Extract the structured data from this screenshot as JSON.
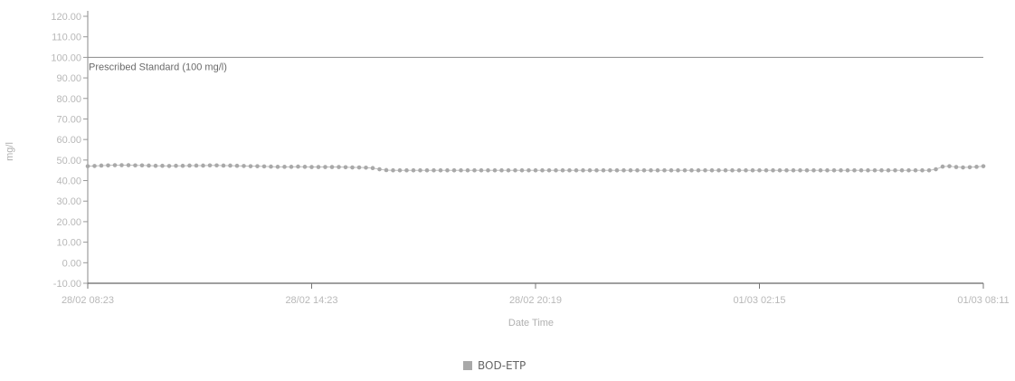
{
  "chart_data": {
    "type": "line",
    "xlabel": "Date Time",
    "ylabel": "mg/l",
    "ylim": [
      -10,
      120
    ],
    "y_ticks": [
      "-10.00",
      "0.00",
      "10.00",
      "20.00",
      "30.00",
      "40.00",
      "50.00",
      "60.00",
      "70.00",
      "80.00",
      "90.00",
      "100.00",
      "110.00",
      "120.00"
    ],
    "x_tick_labels": [
      "28/02 08:23",
      "28/02 14:23",
      "28/02 20:19",
      "01/03 02:15",
      "01/03 08:11"
    ],
    "grid": false,
    "legend_position": "bottom-center",
    "reference_line": {
      "value": 100,
      "label": "Prescribed Standard (100 mg/l)",
      "color": "#8a8a8a"
    },
    "series": [
      {
        "name": "BOD-ETP",
        "color": "#a9a9a9",
        "values": [
          47.0,
          47.1,
          47.3,
          47.4,
          47.5,
          47.5,
          47.5,
          47.4,
          47.4,
          47.3,
          47.2,
          47.2,
          47.1,
          47.2,
          47.2,
          47.3,
          47.3,
          47.3,
          47.4,
          47.4,
          47.3,
          47.3,
          47.2,
          47.1,
          47.0,
          47.0,
          46.9,
          46.8,
          46.7,
          46.7,
          46.7,
          46.8,
          46.7,
          46.6,
          46.6,
          46.6,
          46.6,
          46.6,
          46.5,
          46.4,
          46.4,
          46.3,
          46.1,
          45.5,
          45.1,
          45.0,
          45.0,
          45.0,
          45.0,
          45.0,
          45.0,
          45.0,
          45.0,
          45.0,
          45.0,
          45.0,
          45.0,
          45.0,
          45.0,
          45.0,
          45.0,
          45.0,
          45.0,
          45.0,
          45.0,
          45.0,
          45.0,
          45.0,
          45.0,
          45.0,
          45.0,
          45.0,
          45.0,
          45.0,
          45.0,
          45.0,
          45.0,
          45.0,
          45.0,
          45.0,
          45.0,
          45.0,
          45.0,
          45.0,
          45.0,
          45.0,
          45.0,
          45.0,
          45.0,
          45.0,
          45.0,
          45.0,
          45.0,
          45.0,
          45.0,
          45.0,
          45.0,
          45.0,
          45.0,
          45.0,
          45.0,
          45.0,
          45.0,
          45.0,
          45.0,
          45.0,
          45.0,
          45.0,
          45.0,
          45.0,
          45.0,
          45.0,
          45.0,
          45.0,
          45.0,
          45.0,
          45.0,
          45.0,
          45.0,
          45.0,
          45.0,
          45.0,
          45.0,
          45.0,
          45.0,
          45.5,
          46.8,
          47.0,
          46.6,
          46.4,
          46.5,
          46.7,
          47.0
        ]
      }
    ]
  }
}
